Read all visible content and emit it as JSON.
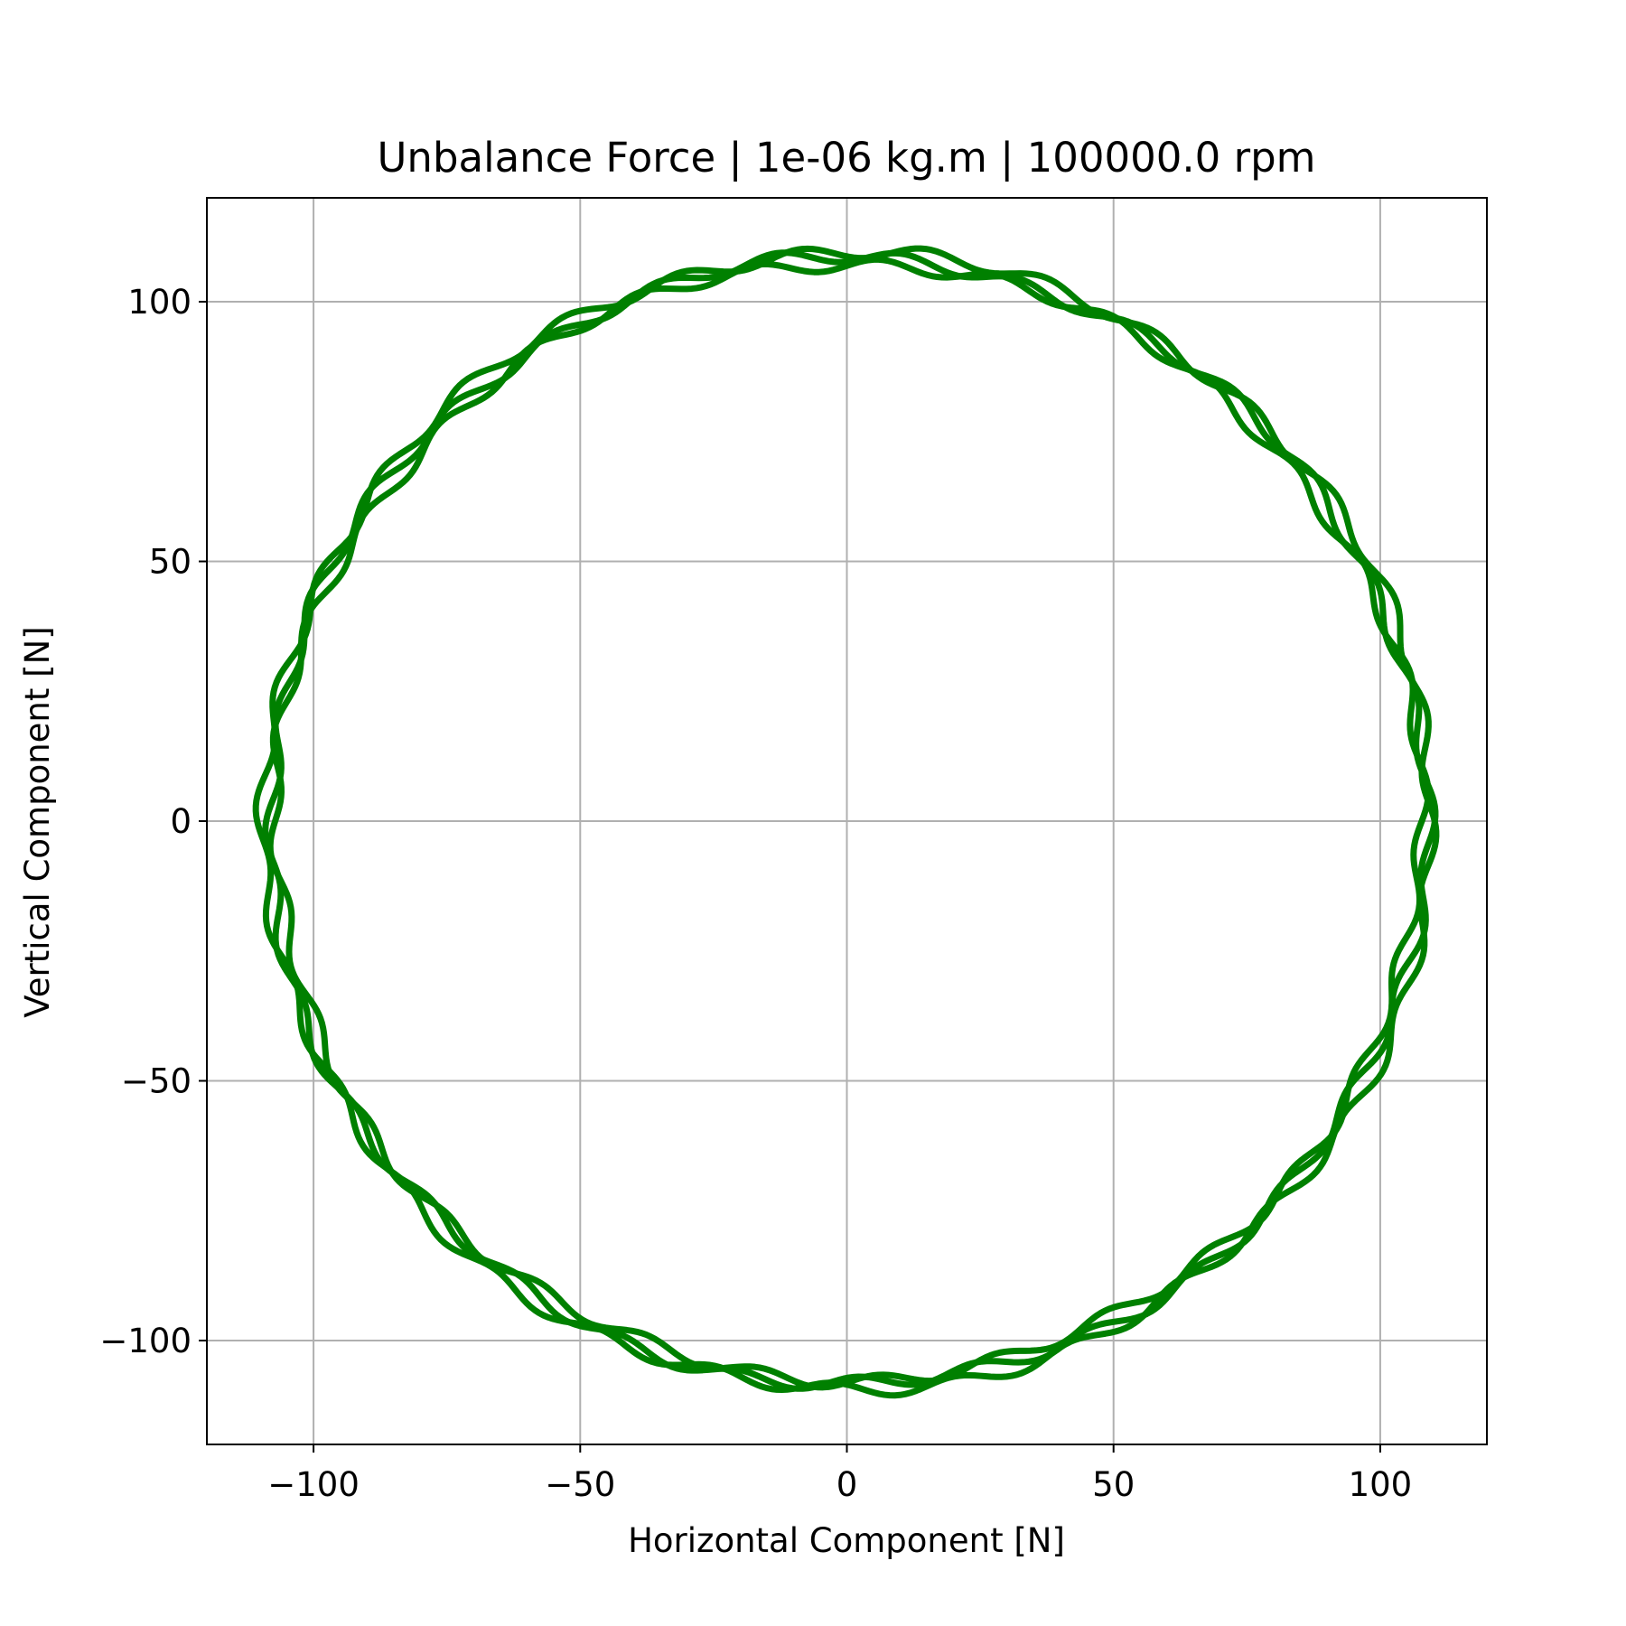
{
  "chart_data": {
    "type": "line",
    "title": "Unbalance Force | 1e-06 kg.m | 100000.0 rpm",
    "xlabel": "Horizontal Component [N]",
    "ylabel": "Vertical Component [N]",
    "xlim": [
      -120,
      120
    ],
    "ylim": [
      -120,
      120
    ],
    "xticks": [
      -100,
      -50,
      0,
      50,
      100
    ],
    "yticks": [
      -100,
      -50,
      0,
      50,
      100
    ],
    "xtick_labels": [
      "−100",
      "−50",
      "0",
      "50",
      "100"
    ],
    "ytick_labels": [
      "−100",
      "−50",
      "0",
      "50",
      "100"
    ],
    "grid": true,
    "legend": "none",
    "colors": {
      "series": "#008000",
      "grid": "#b0b0b0",
      "axes": "#000000"
    },
    "series": [
      {
        "shape": "near-circular closed orbit",
        "mean_radius": 108.5,
        "ripple_amplitude": 1.2,
        "ripple_lobes": 30,
        "band_width": 2
      }
    ]
  }
}
